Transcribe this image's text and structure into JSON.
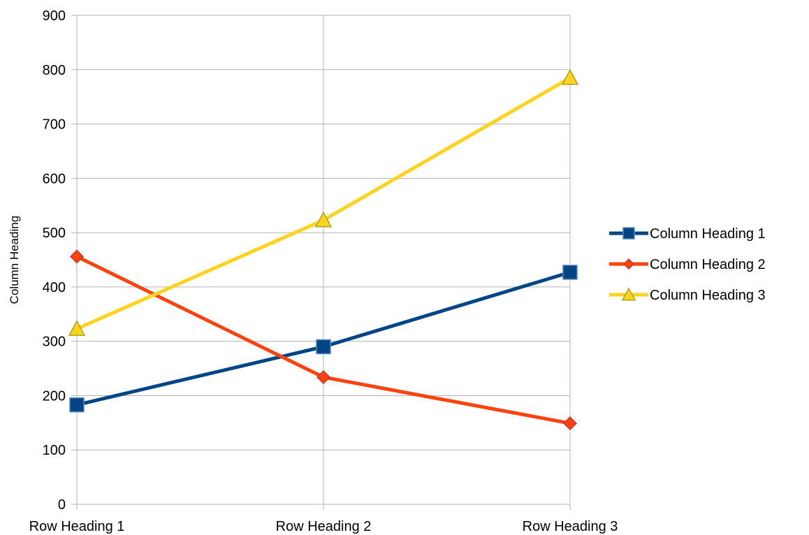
{
  "chart_data": {
    "type": "line",
    "title": "",
    "xlabel": "",
    "ylabel": "Column Heading",
    "categories": [
      "Row Heading 1",
      "Row Heading 2",
      "Row Heading 3"
    ],
    "ylim": [
      0,
      900
    ],
    "yticks": [
      0,
      100,
      200,
      300,
      400,
      500,
      600,
      700,
      800,
      900
    ],
    "grid": true,
    "legend_position": "right",
    "series": [
      {
        "name": "Column Heading 1",
        "values": [
          183,
          290,
          427
        ],
        "color": "#004586",
        "marker": "square"
      },
      {
        "name": "Column Heading 2",
        "values": [
          456,
          234,
          149
        ],
        "color": "#ff420e",
        "marker": "diamond"
      },
      {
        "name": "Column Heading 3",
        "values": [
          323,
          523,
          785
        ],
        "color": "#ffd320",
        "marker": "triangle"
      }
    ]
  }
}
